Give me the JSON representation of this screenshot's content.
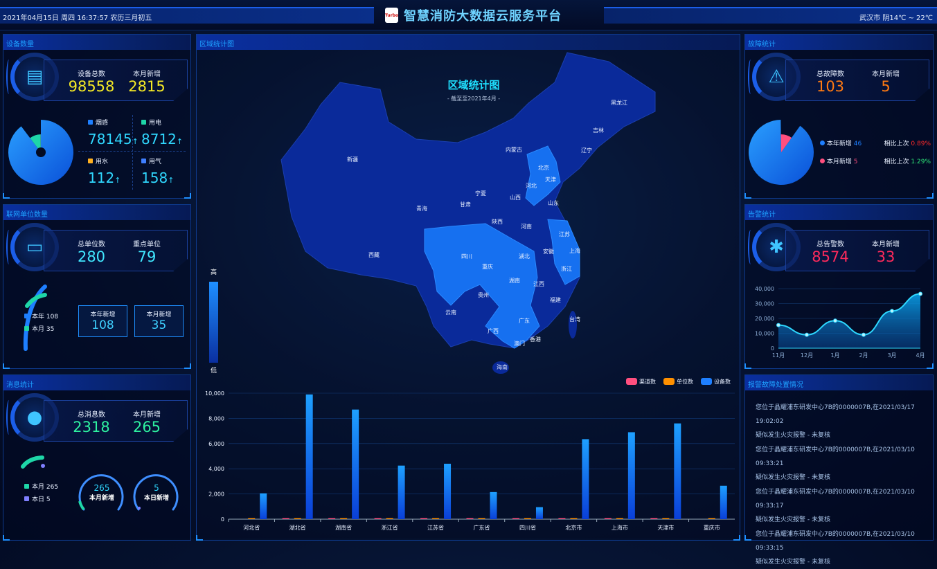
{
  "header": {
    "datetime": "2021年04月15日 周四 16:37:57 农历三月初五",
    "title": "智慧消防大数据云服务平台",
    "logo_text": "Turbo",
    "weather": "武汉市 阴14℃ ~ 22℃"
  },
  "device": {
    "title": "设备数量",
    "total_label": "设备总数",
    "total": "98558",
    "new_label": "本月新增",
    "new": "2815",
    "icon": "server-icon",
    "types": [
      {
        "label": "烟感",
        "value": "78145",
        "color": "#1e7fff"
      },
      {
        "label": "用电",
        "value": "8712",
        "color": "#1ed6a8"
      },
      {
        "label": "用水",
        "value": "112",
        "color": "#ffb020"
      },
      {
        "label": "用气",
        "value": "158",
        "color": "#3f7fff"
      }
    ],
    "arrow": "↑"
  },
  "units": {
    "title": "联网单位数量",
    "total_label": "总单位数",
    "total": "280",
    "key_label": "重点单位",
    "key": "79",
    "icon": "monitor-icon",
    "legend": [
      {
        "label": "本年 108",
        "color": "#1e7fff"
      },
      {
        "label": "本月 35",
        "color": "#1ed6a8"
      }
    ],
    "boxes": [
      {
        "label": "本年新增",
        "value": "108"
      },
      {
        "label": "本月新增",
        "value": "35"
      }
    ]
  },
  "messages": {
    "title": "消息统计",
    "total_label": "总消息数",
    "total": "2318",
    "new_label": "本月新增",
    "new": "265",
    "icon": "chat-icon",
    "legend": [
      {
        "label": "本月 265",
        "color": "#1ed6a8"
      },
      {
        "label": "本日 5",
        "color": "#7f7fff"
      }
    ],
    "gauges": [
      {
        "value": "265",
        "label": "本月新增"
      },
      {
        "value": "5",
        "label": "本日新增"
      }
    ]
  },
  "faults": {
    "title": "故障统计",
    "total_label": "总故障数",
    "total": "103",
    "new_label": "本月新增",
    "new": "5",
    "icon": "warning-icon",
    "rows": [
      {
        "label": "本年新增",
        "value": "46",
        "cmp_label": "相比上次",
        "cmp": "0.89%",
        "dot": "#1e7fff",
        "cmp_color": "#ff2a2a"
      },
      {
        "label": "本月新增",
        "value": "5",
        "cmp_label": "相比上次",
        "cmp": "1.29%",
        "dot": "#ff4f7f",
        "cmp_color": "#2ee87a"
      }
    ]
  },
  "alarms": {
    "title": "告警统计",
    "total_label": "总告警数",
    "total": "8574",
    "new_label": "本月新增",
    "new": "33",
    "icon": "siren-icon"
  },
  "map": {
    "panel_title": "区域统计图",
    "title": "区域统计图",
    "subtitle": "- 截至至2021年4月 -",
    "legend_high": "高",
    "legend_low": "低",
    "provinces": [
      "黑龙江",
      "吉林",
      "辽宁",
      "内蒙古",
      "新疆",
      "北京",
      "天津",
      "河北",
      "宁夏",
      "山西",
      "山东",
      "青海",
      "甘肃",
      "陕西",
      "河南",
      "江苏",
      "西藏",
      "四川",
      "安徽",
      "上海",
      "重庆",
      "湖北",
      "浙江",
      "湖南",
      "江西",
      "贵州",
      "福建",
      "云南",
      "台湾",
      "广西",
      "广东",
      "香港",
      "澳门",
      "海南"
    ]
  },
  "alarm_list": {
    "title": "报警故障处置情况",
    "items": [
      {
        "line1": "您位于晶耀浦东研发中心7B的0000007B,在2021/03/17 19:02:02",
        "line2": "疑似发生火灾报警 - 未复核"
      },
      {
        "line1": "您位于晶耀浦东研发中心7B的0000007B,在2021/03/10 09:33:21",
        "line2": "疑似发生火灾报警 - 未复核"
      },
      {
        "line1": "您位于晶耀浦东研发中心7B的0000007B,在2021/03/10 09:33:17",
        "line2": "疑似发生火灾报警 - 未复核"
      },
      {
        "line1": "您位于晶耀浦东研发中心7B的0000007B,在2021/03/10 09:33:15",
        "line2": "疑似发生火灾报警 - 未复核"
      }
    ]
  },
  "chart_data": [
    {
      "type": "bar",
      "categories": [
        "河北省",
        "湖北省",
        "湖南省",
        "浙江省",
        "江苏省",
        "广东省",
        "四川省",
        "北京市",
        "上海市",
        "天津市",
        "重庆市"
      ],
      "series": [
        {
          "name": "渠道数",
          "color": "#ff4f7f",
          "values": [
            0,
            30,
            10,
            20,
            20,
            10,
            30,
            10,
            10,
            20,
            0
          ]
        },
        {
          "name": "单位数",
          "color": "#ff9000",
          "values": [
            20,
            40,
            20,
            40,
            40,
            20,
            30,
            20,
            20,
            20,
            30
          ]
        },
        {
          "name": "设备数",
          "color": "#1e7fff",
          "values": [
            2050,
            9900,
            8700,
            4250,
            4400,
            2150,
            950,
            6350,
            6900,
            7600,
            2650
          ]
        }
      ],
      "ylim": [
        0,
        10000
      ],
      "yticks": [
        "0",
        "2,000",
        "4,000",
        "6,000",
        "8,000",
        "10,000"
      ],
      "legend": "top-right",
      "grid": true
    },
    {
      "type": "area",
      "categories": [
        "11月",
        "12月",
        "1月",
        "2月",
        "3月",
        "4月"
      ],
      "values": [
        15500,
        9000,
        18500,
        9000,
        25000,
        36500
      ],
      "ylim": [
        0,
        40000
      ],
      "yticks": [
        "0",
        "10,000",
        "20,000",
        "30,000",
        "40,000"
      ],
      "grid": true
    },
    {
      "type": "pie",
      "values": [
        78145,
        8712,
        112,
        158
      ],
      "labels": [
        "烟感",
        "用电",
        "用水",
        "用气"
      ]
    },
    {
      "type": "pie",
      "values": [
        46,
        5
      ],
      "labels": [
        "本年新增",
        "本月新增"
      ]
    }
  ]
}
